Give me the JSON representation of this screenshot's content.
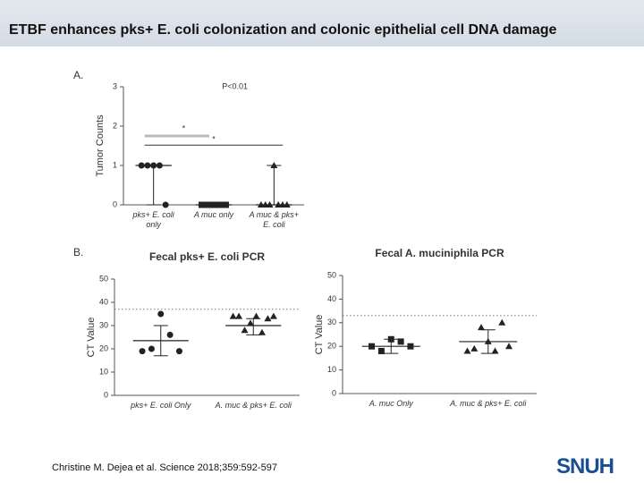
{
  "slide_title": "ETBF enhances pks+ E. coli colonization and colonic epithelial cell DNA damage",
  "citation": "Christine M. Dejea et al. Science 2018;359:592-597",
  "logo": "SNUH",
  "chart_data": [
    {
      "type": "dot",
      "panel": "A.",
      "ylabel": "Tumor Counts",
      "color": "#222222",
      "ylim": [
        0,
        3
      ],
      "yticks": [
        0,
        1,
        2,
        3
      ],
      "annotations": [
        "P<0.01",
        "*",
        "*"
      ],
      "groups": [
        {
          "name": "pks+ E. coli only",
          "marker": "circle",
          "values": [
            1,
            1,
            1,
            1,
            0
          ],
          "center": 1,
          "range": [
            0,
            1
          ]
        },
        {
          "name": "A muc only",
          "marker": "square",
          "values": [
            0,
            0,
            0,
            0,
            0
          ],
          "center": 0,
          "range": [
            0,
            0
          ]
        },
        {
          "name": "A muc & pks+ E. coli",
          "marker": "triangle",
          "values": [
            0,
            0,
            0,
            1,
            0,
            0,
            0
          ],
          "center": 0,
          "range": [
            0,
            1
          ]
        }
      ]
    },
    {
      "type": "dot",
      "panel": "B.",
      "title": "Fecal pks+ E. coli PCR",
      "ylabel": "CT Value",
      "color": "#222222",
      "ylim": [
        0,
        50
      ],
      "yticks": [
        0,
        10,
        20,
        30,
        40,
        50
      ],
      "ref_line": 37,
      "groups": [
        {
          "name": "pks+ E. coli Only",
          "marker": "circle",
          "values": [
            19,
            20,
            35,
            26,
            19
          ],
          "center": 23.5,
          "range": [
            17,
            30
          ]
        },
        {
          "name": "A. muc & pks+ E. coli",
          "marker": "triangle",
          "values": [
            34,
            34,
            28,
            31,
            34,
            27,
            33,
            34
          ],
          "center": 30,
          "range": [
            26,
            33
          ]
        }
      ]
    },
    {
      "type": "dot",
      "title": "Fecal A. muciniphila PCR",
      "ylabel": "CT Value",
      "color": "#222222",
      "ylim": [
        0,
        50
      ],
      "yticks": [
        0,
        10,
        20,
        30,
        40,
        50
      ],
      "ref_line": 33,
      "groups": [
        {
          "name": "A. muc Only",
          "marker": "square",
          "values": [
            20,
            18,
            23,
            22,
            20
          ],
          "center": 20,
          "range": [
            17,
            23
          ]
        },
        {
          "name": "A. muc & pks+ E. coli",
          "marker": "triangle",
          "values": [
            18,
            19,
            28,
            22,
            18,
            30,
            20
          ],
          "center": 22,
          "range": [
            17,
            27
          ]
        }
      ]
    }
  ]
}
